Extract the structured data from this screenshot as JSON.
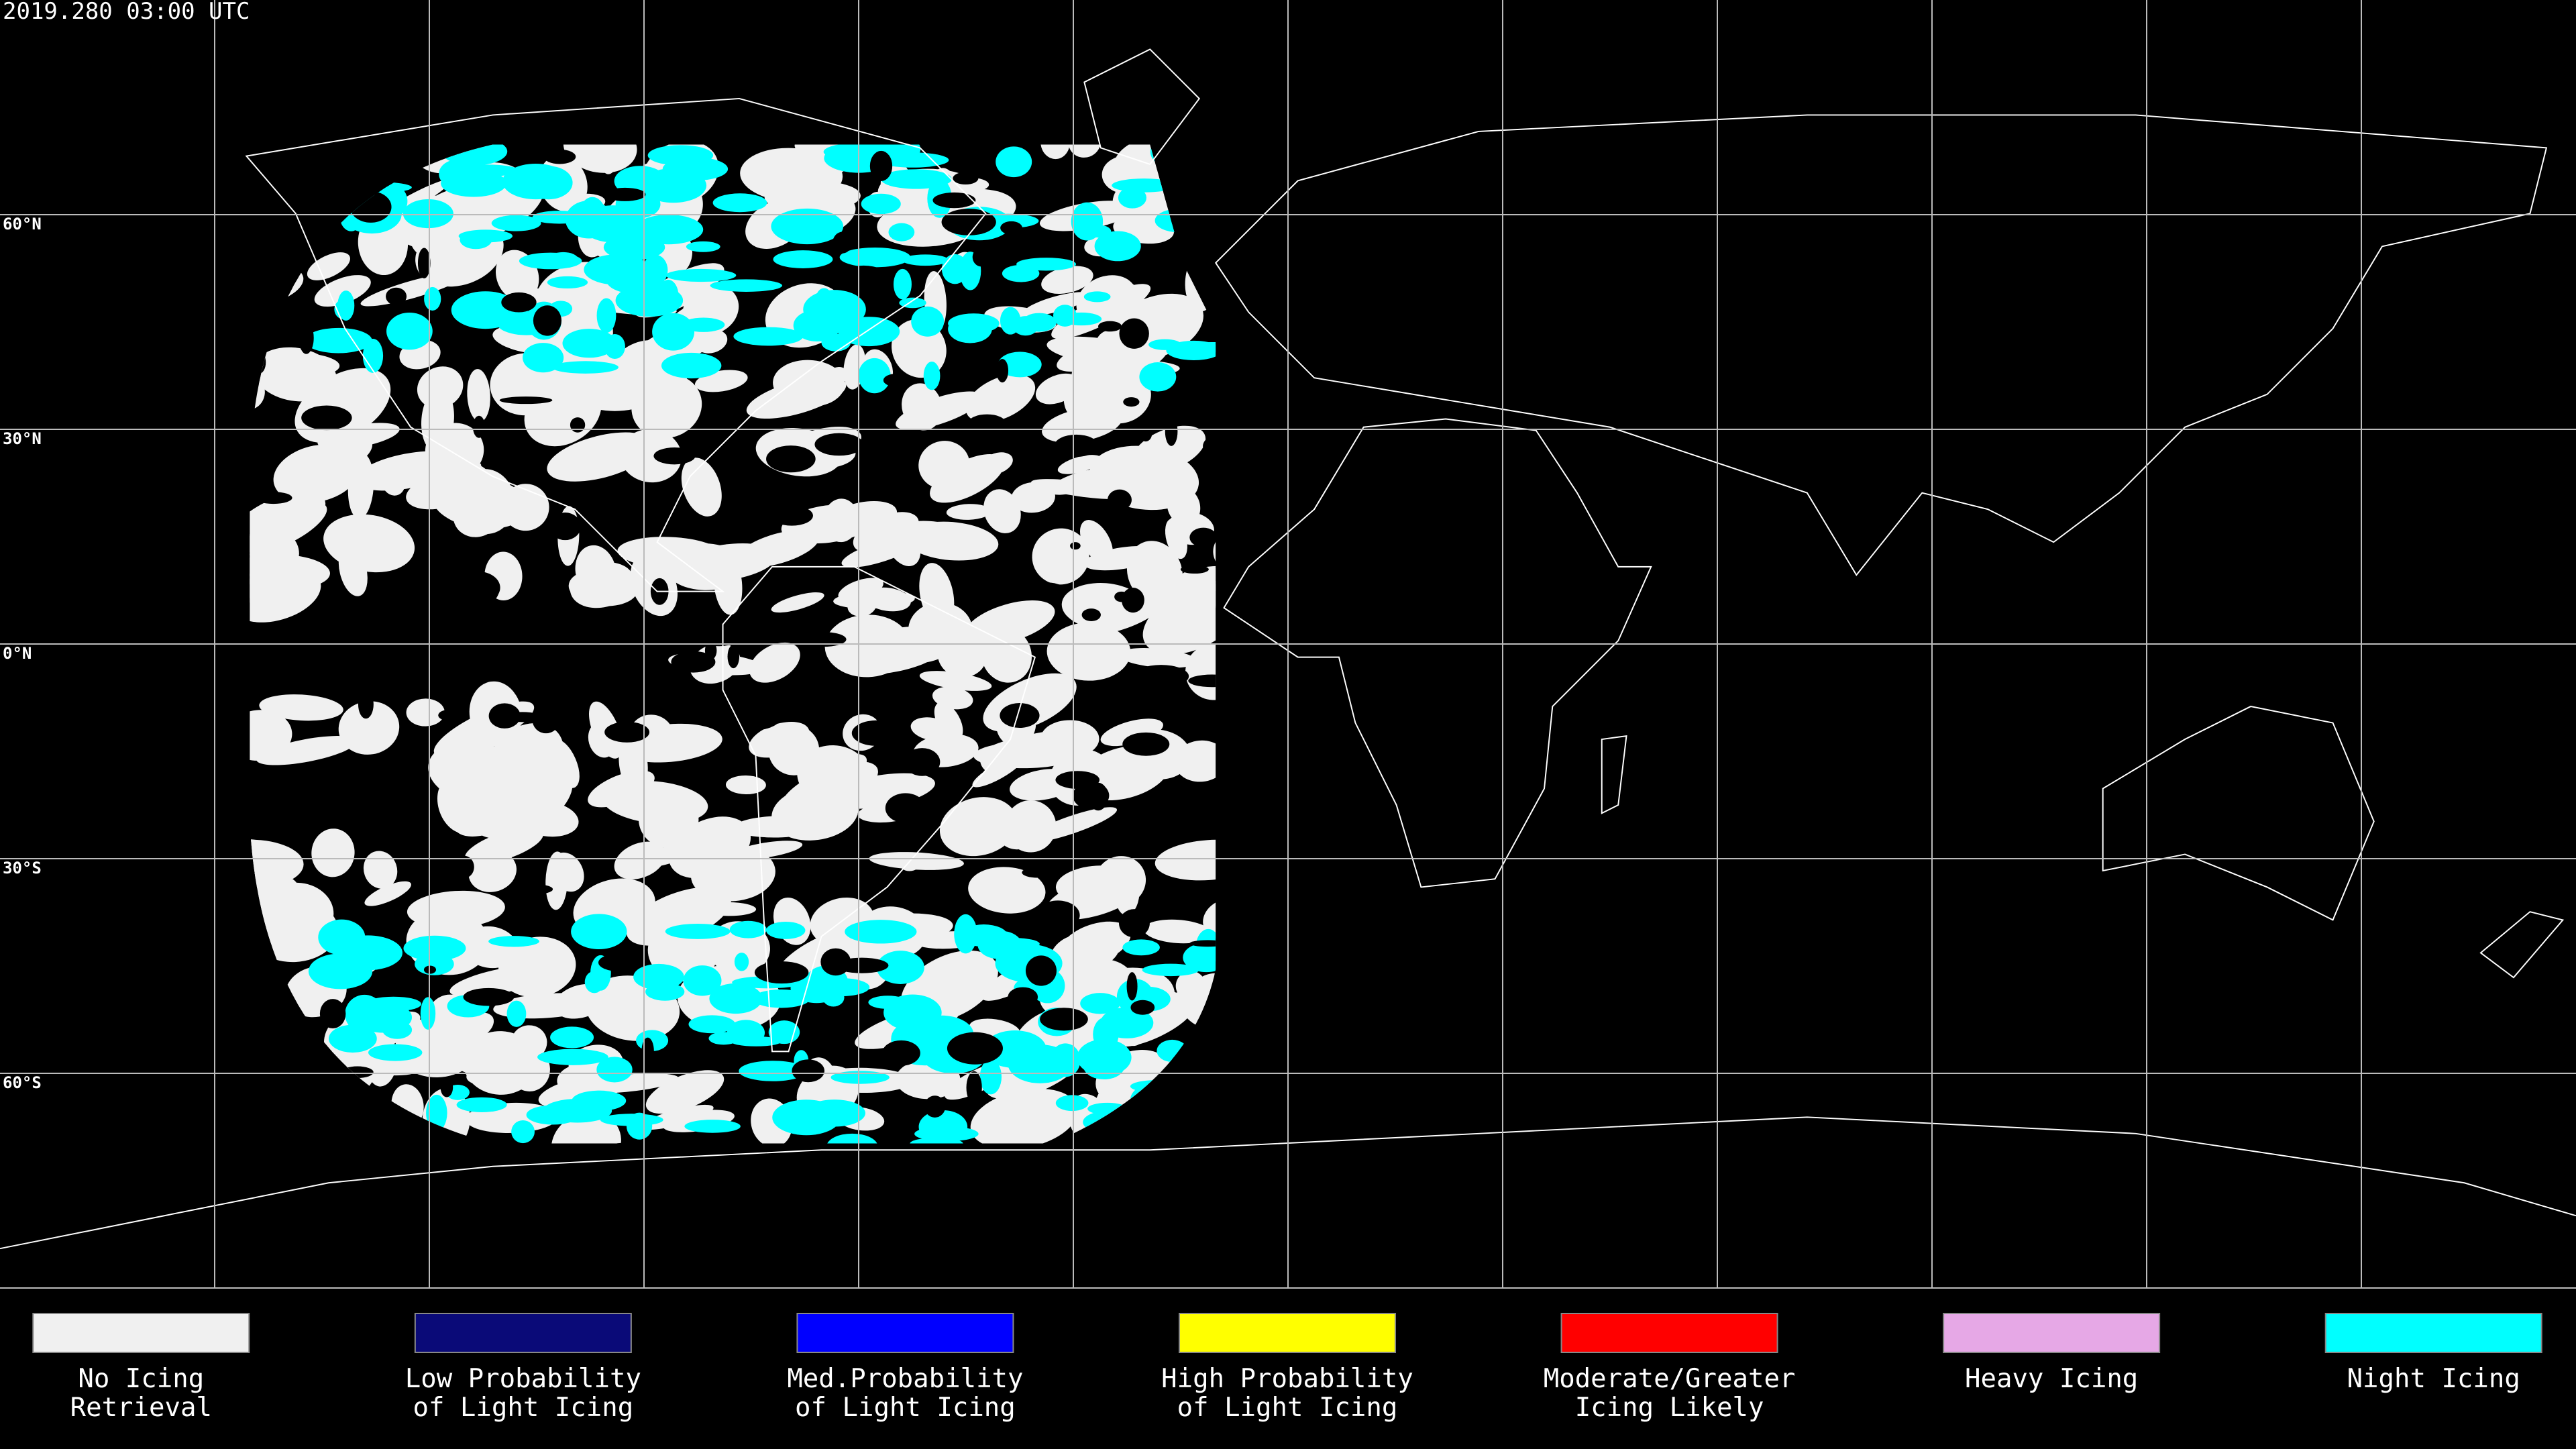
{
  "title": "2019.280 03:00 UTC",
  "lat_labels": [
    "60°N",
    "30°N",
    "0°N",
    "30°S",
    "60°S"
  ],
  "legend": [
    {
      "label": [
        "No Icing",
        "Retrieval"
      ],
      "color": "#f0f0f0"
    },
    {
      "label": [
        "Low Probability",
        "of Light Icing"
      ],
      "color": "#0a0a78"
    },
    {
      "label": [
        "Med.Probability",
        "of Light Icing"
      ],
      "color": "#0000ff"
    },
    {
      "label": [
        "High Probability",
        "of Light Icing"
      ],
      "color": "#ffff00"
    },
    {
      "label": [
        "Moderate/Greater",
        "Icing Likely"
      ],
      "color": "#ff0000"
    },
    {
      "label": [
        "Heavy Icing"
      ],
      "color": "#e6a8e6"
    },
    {
      "label": [
        "Night Icing"
      ],
      "color": "#00ffff"
    }
  ]
}
